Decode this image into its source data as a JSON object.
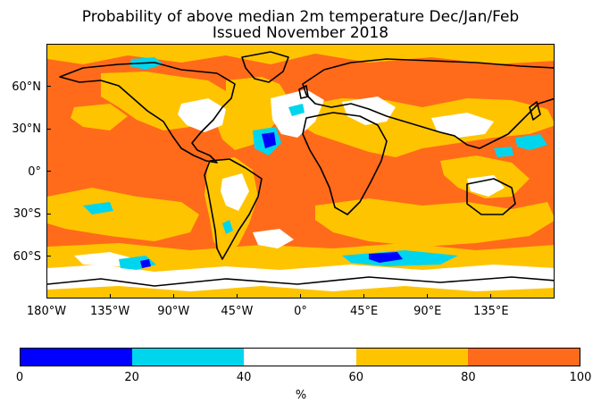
{
  "title_line1": "Probability of above median 2m temperature Dec/Jan/Feb",
  "title_line2": "Issued November 2018",
  "x_ticks": [
    {
      "lon": -180,
      "label": "180°W"
    },
    {
      "lon": -135,
      "label": "135°W"
    },
    {
      "lon": -90,
      "label": "90°W"
    },
    {
      "lon": -45,
      "label": "45°W"
    },
    {
      "lon": 0,
      "label": "0°"
    },
    {
      "lon": 45,
      "label": "45°E"
    },
    {
      "lon": 90,
      "label": "90°E"
    },
    {
      "lon": 135,
      "label": "135°E"
    }
  ],
  "y_ticks": [
    {
      "lat": 60,
      "label": "60°N"
    },
    {
      "lat": 30,
      "label": "30°N"
    },
    {
      "lat": 0,
      "label": "0°"
    },
    {
      "lat": -30,
      "label": "30°S"
    },
    {
      "lat": -60,
      "label": "60°S"
    }
  ],
  "colorbar": {
    "bins": [
      {
        "from": 0,
        "to": 20,
        "color": "#0000ff"
      },
      {
        "from": 20,
        "to": 40,
        "color": "#00d5ee"
      },
      {
        "from": 40,
        "to": 60,
        "color": "#ffffff"
      },
      {
        "from": 60,
        "to": 80,
        "color": "#ffc400"
      },
      {
        "from": 80,
        "to": 100,
        "color": "#ff6b1a"
      }
    ],
    "tick_labels": [
      "0",
      "20",
      "40",
      "60",
      "80",
      "100"
    ],
    "unit": "%"
  },
  "map": {
    "background_category": "80-100",
    "coastline_color": "#000000"
  }
}
